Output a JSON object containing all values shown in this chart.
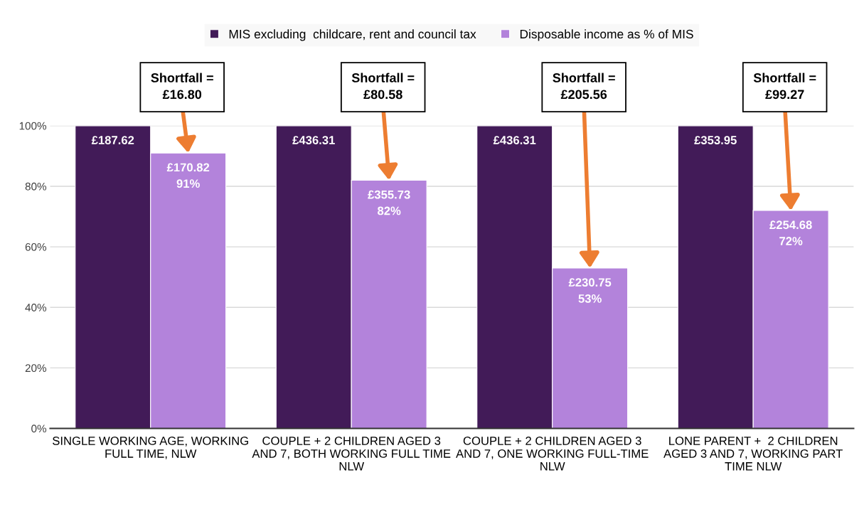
{
  "chart_data": {
    "type": "bar",
    "categories": [
      "SINGLE WORKING AGE, WORKING\nFULL TIME, NLW",
      "COUPLE + 2 CHILDREN AGED 3\nAND 7, BOTH WORKING FULL TIME\nNLW",
      "COUPLE + 2 CHILDREN AGED 3\nAND 7, ONE WORKING FULL-TIME\nNLW",
      "LONE PARENT +  2 CHILDREN\nAGED 3 AND 7, WORKING PART\nTIME NLW"
    ],
    "series": [
      {
        "name": "MIS excluding  childcare, rent and council tax",
        "color": "#421b58",
        "values": [
          100,
          100,
          100,
          100
        ]
      },
      {
        "name": "Disposable income as % of MIS",
        "color": "#b383db",
        "values": [
          91,
          82,
          53,
          72
        ],
        "value_labels": [
          "£170.82\n91%",
          "£355.73\n82%",
          "£230.75\n53%",
          "£254.68\n72%"
        ]
      }
    ],
    "ylim": [
      0,
      100
    ],
    "yticks": [
      {
        "value": 0,
        "label": "0%"
      },
      {
        "value": 20,
        "label": "20%"
      },
      {
        "value": 40,
        "label": "40%"
      },
      {
        "value": 60,
        "label": "60%"
      },
      {
        "value": 80,
        "label": "80%"
      },
      {
        "value": 100,
        "label": "100%"
      }
    ],
    "grid": "y",
    "legend": "top",
    "annotations": [
      {
        "text": "£187.62",
        "x": "SINGLE WORKING AGE, WORKING\nFULL TIME, NLW",
        "y": 100
      },
      {
        "text": "£436.31",
        "x": "COUPLE + 2 CHILDREN AGED 3\nAND 7, BOTH WORKING FULL TIME\nNLW",
        "y": 100
      },
      {
        "text": "£436.31",
        "x": "COUPLE + 2 CHILDREN AGED 3\nAND 7, ONE WORKING FULL-TIME\nNLW",
        "y": 100
      },
      {
        "text": "£353.95",
        "x": "LONE PARENT +  2 CHILDREN\nAGED 3 AND 7, WORKING PART\nTIME NLW",
        "y": 100
      },
      "Shortfall =\n£16.80",
      "Shortfall =\n£80.58",
      "Shortfall =\n£205.56",
      "Shortfall =\n£99.27"
    ]
  }
}
